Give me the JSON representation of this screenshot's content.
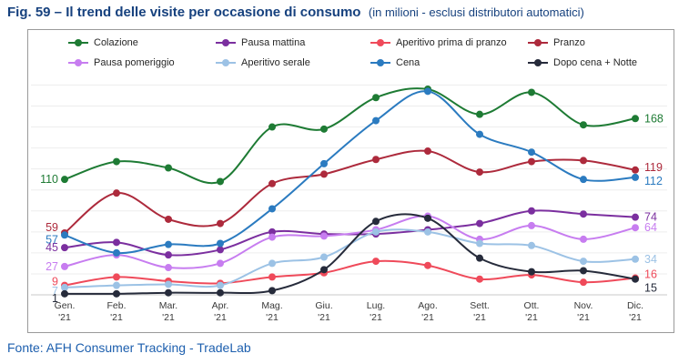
{
  "title": {
    "bold": "Fig. 59 – Il trend delle visite per occasione di consumo",
    "normal": "(in milioni - esclusi distributori automatici)"
  },
  "footer": {
    "text": "Fonte: AFH Consumer Tracking - TradeLab"
  },
  "colors": {
    "title_blue": "#16417e",
    "footer_blue": "#1d5fae",
    "box_border": "#9a9a9a",
    "grid": "#ededed",
    "axis": "#c8c8c8",
    "tick_text": "#3a3a3a",
    "legend_text": "#262626"
  },
  "chart_data": {
    "type": "line",
    "title": "Il trend delle visite per occasione di consumo (in milioni - esclusi distributori automatici)",
    "xlabel": "",
    "ylabel": "",
    "categories": [
      "Gen. '21",
      "Feb. '21",
      "Mar. '21",
      "Apr. '21",
      "Mag. '21",
      "Giu. '21",
      "Lug. '21",
      "Ago. '21",
      "Sett. '21",
      "Ott. '21",
      "Nov. '21",
      "Dic. '21"
    ],
    "x_tick_top": [
      "Gen.",
      "Feb.",
      "Mar.",
      "Apr.",
      "Mag.",
      "Giu.",
      "Lug.",
      "Ago.",
      "Sett.",
      "Ott.",
      "Nov.",
      "Dic."
    ],
    "x_tick_bottom": "'21",
    "ylim": [
      0,
      210
    ],
    "grid": true,
    "grid_step": 20,
    "legend_position": "top",
    "smooth": true,
    "series": [
      {
        "name": "Colazione",
        "color": "#1e7b34",
        "values": [
          110,
          127,
          121,
          108,
          160,
          158,
          188,
          196,
          172,
          193,
          162,
          168
        ],
        "left_label": {
          "text": "110",
          "dy": 0
        },
        "right_label": {
          "text": "168",
          "dy": 0
        }
      },
      {
        "name": "Pausa mattina",
        "color": "#7b2f9f",
        "values": [
          45,
          50,
          38,
          43,
          60,
          58,
          58,
          62,
          68,
          80,
          77,
          74
        ],
        "left_label": {
          "text": "45",
          "dy": 0
        },
        "right_label": {
          "text": "74",
          "dy": 0
        }
      },
      {
        "name": "Aperitivo prima di pranzo",
        "color": "#ef4a5a",
        "values": [
          9,
          17,
          13,
          11,
          17,
          21,
          32,
          28,
          15,
          19,
          12,
          16
        ],
        "left_label": {
          "text": "9",
          "dy": -4
        },
        "right_label": {
          "text": "16",
          "dy": -4
        }
      },
      {
        "name": "Pranzo",
        "color": "#ad2a3c",
        "values": [
          59,
          97,
          72,
          68,
          106,
          115,
          129,
          137,
          117,
          127,
          128,
          119
        ],
        "left_label": {
          "text": "59",
          "dy": -6
        },
        "right_label": {
          "text": "119",
          "dy": -3
        }
      },
      {
        "name": "Pausa pomeriggio",
        "color": "#c77df0",
        "values": [
          27,
          38,
          26,
          30,
          55,
          56,
          62,
          75,
          53,
          66,
          53,
          64
        ],
        "left_label": {
          "text": "27",
          "dy": 0
        },
        "right_label": {
          "text": "64",
          "dy": 0
        }
      },
      {
        "name": "Aperitivo serale",
        "color": "#9cc2e5",
        "values": [
          7,
          9,
          10,
          9,
          30,
          36,
          60,
          60,
          49,
          47,
          32,
          34
        ],
        "left_label": {
          "text": "7",
          "dy": 4
        },
        "right_label": {
          "text": "34",
          "dy": 0
        }
      },
      {
        "name": "Cena",
        "color": "#2b7bc0",
        "values": [
          57,
          40,
          48,
          49,
          82,
          125,
          166,
          194,
          153,
          136,
          110,
          112
        ],
        "left_label": {
          "text": "57",
          "dy": 5
        },
        "right_label": {
          "text": "112",
          "dy": 4
        }
      },
      {
        "name": "Dopo cena + Notte",
        "color": "#262b3b",
        "values": [
          1,
          1,
          2,
          2,
          4,
          24,
          70,
          73,
          35,
          22,
          23,
          15
        ],
        "left_label": {
          "text": "1",
          "dy": 5
        },
        "right_label": {
          "text": "15",
          "dy": 10
        }
      }
    ]
  }
}
